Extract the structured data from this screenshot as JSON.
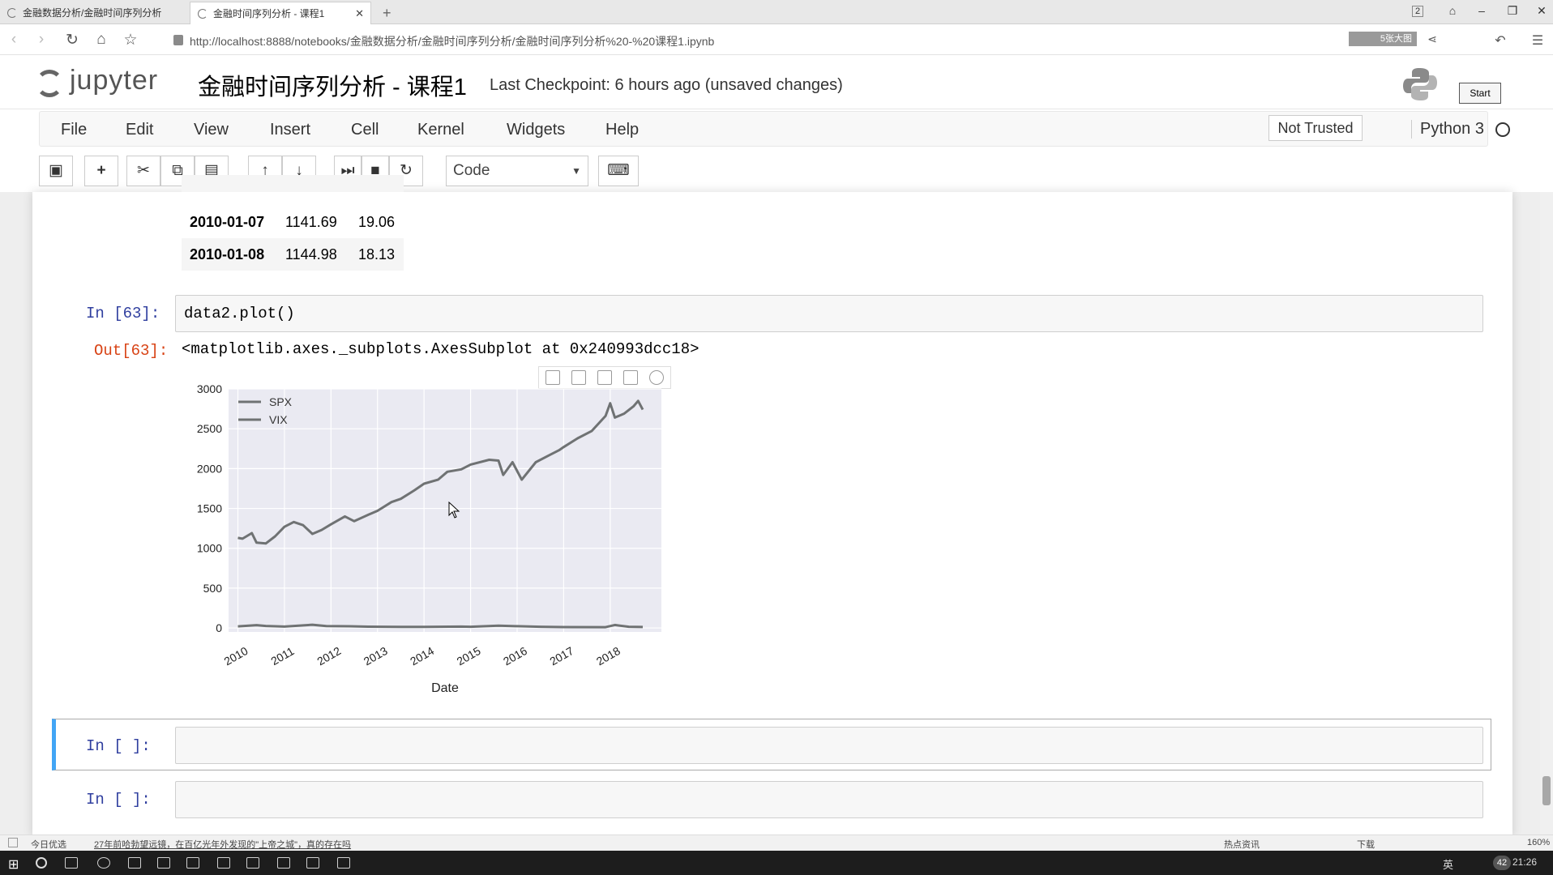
{
  "browser": {
    "tabs": [
      {
        "title": "金融数据分析/金融时间序列分析"
      },
      {
        "title": "金融时间序列分析 - 课程1",
        "active": true
      }
    ],
    "url": "http://localhost:8888/notebooks/金融数据分析/金融时间序列分析/金融时间序列分析%20-%20课程1.ipynb",
    "window_badge": "2",
    "zoom_label": "5张大图"
  },
  "jupyter": {
    "logo_text": "jupyter",
    "notebook_title": "金融时间序列分析 - 课程1",
    "checkpoint": "Last Checkpoint: 6 hours ago (unsaved changes)",
    "start_label": "Start",
    "menus": [
      "File",
      "Edit",
      "View",
      "Insert",
      "Cell",
      "Kernel",
      "Widgets",
      "Help"
    ],
    "trust_label": "Not Trusted",
    "kernel_name": "Python 3",
    "cell_type": "Code"
  },
  "cells": {
    "df_rows": [
      {
        "date": "2010-01-07",
        "spx": "1141.69",
        "vix": "19.06"
      },
      {
        "date": "2010-01-08",
        "spx": "1144.98",
        "vix": "18.13"
      }
    ],
    "in63_prompt": "In  [63]:",
    "in63_code": "data2.plot()",
    "out63_prompt": "Out[63]:",
    "out63_repr": "<matplotlib.axes._subplots.AxesSubplot at 0x240993dcc18>",
    "empty_prompt_1": "In  [ ]:",
    "empty_prompt_2": "In  [ ]:"
  },
  "chart_data": {
    "type": "line",
    "xlabel": "Date",
    "x_ticks": [
      "2010",
      "2011",
      "2012",
      "2013",
      "2014",
      "2015",
      "2016",
      "2017",
      "2018"
    ],
    "y_ticks": [
      "0",
      "500",
      "1000",
      "1500",
      "2000",
      "2500",
      "3000"
    ],
    "ylim": [
      -50,
      3000
    ],
    "grid": true,
    "legend_placement": "top-left",
    "series": [
      {
        "name": "SPX",
        "color": "#6f7273",
        "points": [
          [
            2010.0,
            1130
          ],
          [
            2010.1,
            1120
          ],
          [
            2010.3,
            1190
          ],
          [
            2010.4,
            1070
          ],
          [
            2010.6,
            1060
          ],
          [
            2010.8,
            1150
          ],
          [
            2011.0,
            1270
          ],
          [
            2011.2,
            1330
          ],
          [
            2011.4,
            1290
          ],
          [
            2011.6,
            1180
          ],
          [
            2011.8,
            1230
          ],
          [
            2012.0,
            1300
          ],
          [
            2012.3,
            1400
          ],
          [
            2012.5,
            1340
          ],
          [
            2012.8,
            1420
          ],
          [
            2013.0,
            1470
          ],
          [
            2013.3,
            1580
          ],
          [
            2013.5,
            1620
          ],
          [
            2013.8,
            1730
          ],
          [
            2014.0,
            1810
          ],
          [
            2014.3,
            1860
          ],
          [
            2014.5,
            1960
          ],
          [
            2014.8,
            1990
          ],
          [
            2015.0,
            2050
          ],
          [
            2015.4,
            2110
          ],
          [
            2015.6,
            2100
          ],
          [
            2015.7,
            1920
          ],
          [
            2015.9,
            2080
          ],
          [
            2016.1,
            1860
          ],
          [
            2016.4,
            2080
          ],
          [
            2016.7,
            2170
          ],
          [
            2016.9,
            2230
          ],
          [
            2017.0,
            2270
          ],
          [
            2017.3,
            2380
          ],
          [
            2017.6,
            2470
          ],
          [
            2017.9,
            2660
          ],
          [
            2018.0,
            2820
          ],
          [
            2018.1,
            2640
          ],
          [
            2018.3,
            2690
          ],
          [
            2018.5,
            2780
          ],
          [
            2018.6,
            2850
          ],
          [
            2018.7,
            2740
          ]
        ]
      },
      {
        "name": "VIX",
        "color": "#6f7273",
        "points": [
          [
            2010.0,
            20
          ],
          [
            2010.4,
            35
          ],
          [
            2010.6,
            25
          ],
          [
            2011.0,
            17
          ],
          [
            2011.6,
            40
          ],
          [
            2011.9,
            24
          ],
          [
            2012.4,
            21
          ],
          [
            2012.8,
            16
          ],
          [
            2013.5,
            14
          ],
          [
            2014.0,
            13
          ],
          [
            2014.8,
            17
          ],
          [
            2015.0,
            15
          ],
          [
            2015.6,
            28
          ],
          [
            2016.0,
            22
          ],
          [
            2016.5,
            15
          ],
          [
            2017.0,
            11
          ],
          [
            2017.9,
            10
          ],
          [
            2018.1,
            37
          ],
          [
            2018.4,
            15
          ],
          [
            2018.7,
            12
          ]
        ]
      }
    ]
  },
  "statusbar": {
    "left_label": "今日优选",
    "headline": "27年前哈勃望远镜，在百亿光年外发现的\"上帝之城\"，真的存在吗",
    "hot_news": "热点资讯",
    "download": "下载",
    "zoom": "160%"
  },
  "taskbar": {
    "ime": "英",
    "time": "21:26",
    "badge": "42"
  }
}
